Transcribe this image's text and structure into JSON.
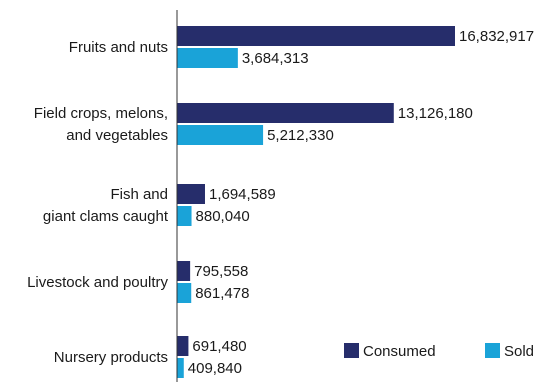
{
  "chart_data": {
    "type": "bar",
    "orientation": "horizontal",
    "categories": [
      [
        "Fruits and nuts"
      ],
      [
        "Field crops, melons,",
        "and vegetables"
      ],
      [
        "Fish and",
        "giant clams caught"
      ],
      [
        "Livestock and poultry"
      ],
      [
        "Nursery products"
      ]
    ],
    "series": [
      {
        "name": "Consumed",
        "color": "#262d6b",
        "values": [
          16832917,
          13126180,
          1694589,
          795558,
          691480
        ],
        "labels": [
          "16,832,917",
          "13,126,180",
          "1,694,589",
          "795,558",
          "691,480"
        ]
      },
      {
        "name": "Sold",
        "color": "#1aa3d8",
        "values": [
          3684313,
          5212330,
          880040,
          861478,
          409840
        ],
        "labels": [
          "3,684,313",
          "5,212,330",
          "880,040",
          "861,478",
          "409,840"
        ]
      }
    ],
    "xlim": [
      0,
      18000000
    ],
    "grid": false,
    "legend": "bottom-right",
    "title": "",
    "xlabel": "",
    "ylabel": ""
  }
}
